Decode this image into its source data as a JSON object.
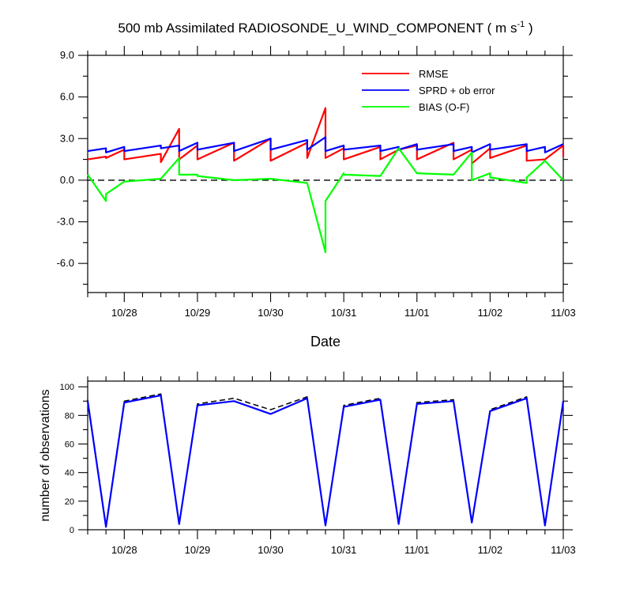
{
  "chart_data": [
    {
      "type": "line",
      "title": "500 mb Assimilated RADIOSONDE_U_WIND_COMPONENT ( m s",
      "title_superscript": "-1",
      "title_suffix": " )",
      "xlabel": "Date",
      "ylabel": "",
      "xlim": [
        0,
        6.5
      ],
      "ylim": [
        -8.1,
        9.0
      ],
      "y_ticks": [
        {
          "value": 9.0,
          "label": "9.0"
        },
        {
          "value": 6.0,
          "label": "6.0"
        },
        {
          "value": 3.0,
          "label": "3.0"
        },
        {
          "value": 0.0,
          "label": "0.0"
        },
        {
          "value": -3.0,
          "label": "-3.0"
        },
        {
          "value": -6.0,
          "label": "-6.0"
        }
      ],
      "x_ticks": [
        {
          "value": 0.5,
          "label": "10/28"
        },
        {
          "value": 1.5,
          "label": "10/29"
        },
        {
          "value": 2.5,
          "label": "10/30"
        },
        {
          "value": 3.5,
          "label": "10/31"
        },
        {
          "value": 4.5,
          "label": "11/01"
        },
        {
          "value": 5.5,
          "label": "11/02"
        },
        {
          "value": 6.5,
          "label": "11/03"
        }
      ],
      "reference_line": 0.0,
      "grid": false,
      "legend_position": "top-right",
      "series": [
        {
          "name": "RMSE",
          "color": "#ff0000",
          "points": [
            [
              0,
              1.5
            ],
            [
              0.25,
              1.7
            ],
            [
              0.25,
              1.6
            ],
            [
              0.5,
              2.2
            ],
            [
              0.5,
              1.5
            ],
            [
              1.0,
              1.9
            ],
            [
              1.0,
              1.3
            ],
            [
              1.25,
              3.7
            ],
            [
              1.25,
              1.5
            ],
            [
              1.5,
              2.5
            ],
            [
              1.5,
              1.5
            ],
            [
              2.0,
              2.7
            ],
            [
              2.0,
              1.4
            ],
            [
              2.5,
              3.0
            ],
            [
              2.5,
              1.4
            ],
            [
              3.0,
              2.7
            ],
            [
              3.0,
              1.6
            ],
            [
              3.25,
              5.2
            ],
            [
              3.25,
              1.6
            ],
            [
              3.5,
              2.3
            ],
            [
              3.5,
              1.5
            ],
            [
              4.0,
              2.4
            ],
            [
              4.0,
              1.5
            ],
            [
              4.25,
              2.2
            ],
            [
              4.25,
              2.2
            ],
            [
              4.5,
              2.5
            ],
            [
              4.5,
              1.5
            ],
            [
              5.0,
              2.7
            ],
            [
              5.0,
              1.5
            ],
            [
              5.25,
              2.2
            ],
            [
              5.25,
              1.2
            ],
            [
              5.5,
              2.3
            ],
            [
              5.5,
              1.6
            ],
            [
              6.0,
              2.5
            ],
            [
              6.0,
              1.4
            ],
            [
              6.25,
              1.5
            ],
            [
              6.25,
              1.5
            ],
            [
              6.5,
              2.5
            ],
            [
              6.5,
              1.7
            ]
          ]
        },
        {
          "name": "SPRD + ob error",
          "color": "#0000ff",
          "points": [
            [
              0,
              2.1
            ],
            [
              0.25,
              2.3
            ],
            [
              0.25,
              2.0
            ],
            [
              0.5,
              2.4
            ],
            [
              0.5,
              2.1
            ],
            [
              1.0,
              2.5
            ],
            [
              1.0,
              2.3
            ],
            [
              1.25,
              2.5
            ],
            [
              1.25,
              2.1
            ],
            [
              1.5,
              2.7
            ],
            [
              1.5,
              2.2
            ],
            [
              2.0,
              2.7
            ],
            [
              2.0,
              2.1
            ],
            [
              2.5,
              3.0
            ],
            [
              2.5,
              2.2
            ],
            [
              3.0,
              2.9
            ],
            [
              3.0,
              2.2
            ],
            [
              3.25,
              3.1
            ],
            [
              3.25,
              2.1
            ],
            [
              3.5,
              2.5
            ],
            [
              3.5,
              2.2
            ],
            [
              4.0,
              2.5
            ],
            [
              4.0,
              2.1
            ],
            [
              4.25,
              2.4
            ],
            [
              4.25,
              2.2
            ],
            [
              4.5,
              2.6
            ],
            [
              4.5,
              2.2
            ],
            [
              5.0,
              2.6
            ],
            [
              5.0,
              2.1
            ],
            [
              5.25,
              2.4
            ],
            [
              5.25,
              2.0
            ],
            [
              5.5,
              2.6
            ],
            [
              5.5,
              2.2
            ],
            [
              6.0,
              2.6
            ],
            [
              6.0,
              2.1
            ],
            [
              6.25,
              2.4
            ],
            [
              6.25,
              2.0
            ],
            [
              6.5,
              2.6
            ]
          ]
        },
        {
          "name": "BIAS (O-F)",
          "color": "#00ff00",
          "points": [
            [
              0,
              0.4
            ],
            [
              0.25,
              -1.5
            ],
            [
              0.25,
              -1.0
            ],
            [
              0.5,
              -0.1
            ],
            [
              1.0,
              0.1
            ],
            [
              1.25,
              1.6
            ],
            [
              1.25,
              0.4
            ],
            [
              1.5,
              0.4
            ],
            [
              1.5,
              0.3
            ],
            [
              2.0,
              0.0
            ],
            [
              2.5,
              0.1
            ],
            [
              3.0,
              -0.2
            ],
            [
              3.25,
              -5.2
            ],
            [
              3.25,
              -1.5
            ],
            [
              3.5,
              0.5
            ],
            [
              3.5,
              0.4
            ],
            [
              4.0,
              0.3
            ],
            [
              4.25,
              2.3
            ],
            [
              4.5,
              0.5
            ],
            [
              5.0,
              0.4
            ],
            [
              5.25,
              2.0
            ],
            [
              5.25,
              0.0
            ],
            [
              5.5,
              0.5
            ],
            [
              5.5,
              0.2
            ],
            [
              6.0,
              -0.2
            ],
            [
              6.0,
              0.2
            ],
            [
              6.25,
              1.4
            ],
            [
              6.5,
              0.0
            ]
          ]
        }
      ]
    },
    {
      "type": "line",
      "ylabel": "number of observations",
      "xlim": [
        0,
        6.5
      ],
      "ylim": [
        0,
        104
      ],
      "y_ticks": [
        {
          "value": 0,
          "label": "0"
        },
        {
          "value": 20,
          "label": "20"
        },
        {
          "value": 40,
          "label": "40"
        },
        {
          "value": 60,
          "label": "60"
        },
        {
          "value": 80,
          "label": "80"
        },
        {
          "value": 100,
          "label": "100"
        }
      ],
      "x_ticks": [
        {
          "value": 0.5,
          "label": "10/28"
        },
        {
          "value": 1.5,
          "label": "10/29"
        },
        {
          "value": 2.5,
          "label": "10/30"
        },
        {
          "value": 3.5,
          "label": "10/31"
        },
        {
          "value": 4.5,
          "label": "11/01"
        },
        {
          "value": 5.5,
          "label": "11/02"
        },
        {
          "value": 6.5,
          "label": "11/03"
        }
      ],
      "series": [
        {
          "color": "#000000",
          "dashed": true,
          "points": [
            [
              0,
              91
            ],
            [
              0.25,
              3
            ],
            [
              0.5,
              90
            ],
            [
              1.0,
              95
            ],
            [
              1.25,
              4
            ],
            [
              1.5,
              88
            ],
            [
              2.0,
              92
            ],
            [
              2.5,
              84
            ],
            [
              3.0,
              93
            ],
            [
              3.25,
              3
            ],
            [
              3.5,
              87
            ],
            [
              4.0,
              92
            ],
            [
              4.25,
              5
            ],
            [
              4.5,
              89
            ],
            [
              5.0,
              91
            ],
            [
              5.25,
              5
            ],
            [
              5.5,
              84
            ],
            [
              6.0,
              93
            ],
            [
              6.25,
              3
            ],
            [
              6.5,
              91
            ]
          ]
        },
        {
          "color": "#0000ff",
          "dashed": false,
          "points": [
            [
              0,
              90
            ],
            [
              0.25,
              2
            ],
            [
              0.5,
              89
            ],
            [
              1.0,
              94
            ],
            [
              1.25,
              4
            ],
            [
              1.5,
              87
            ],
            [
              2.0,
              90
            ],
            [
              2.5,
              81
            ],
            [
              3.0,
              92
            ],
            [
              3.25,
              3
            ],
            [
              3.5,
              86
            ],
            [
              4.0,
              91
            ],
            [
              4.25,
              4
            ],
            [
              4.5,
              88
            ],
            [
              5.0,
              90
            ],
            [
              5.25,
              5
            ],
            [
              5.5,
              83
            ],
            [
              6.0,
              92
            ],
            [
              6.25,
              3
            ],
            [
              6.5,
              90
            ]
          ]
        }
      ]
    }
  ]
}
